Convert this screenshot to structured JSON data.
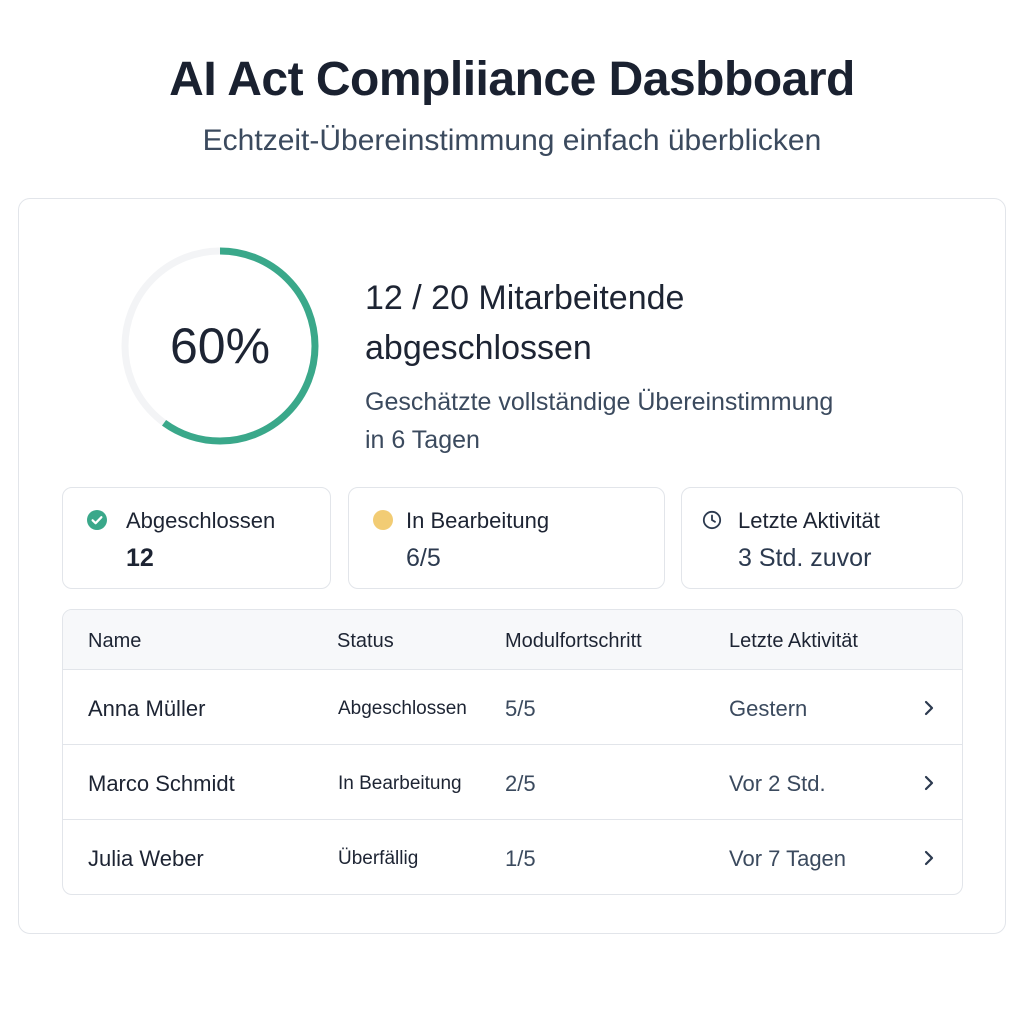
{
  "header": {
    "title": "AI Act Compliiance Dasbboard",
    "subtitle": "Echtzeit-Übereinstimmung einfach überblicken"
  },
  "progress": {
    "percent_label": "60%",
    "fraction": 0.6,
    "color": "#3aa88a",
    "track_color": "#f3f4f6",
    "headline_line1": "12 / 20 Mitarbeitende",
    "headline_line2": "abgeschlossen",
    "estimate_line1": "Geschätzte vollständige Übereinstimmung",
    "estimate_line2": "in 6 Tagen"
  },
  "stats": [
    {
      "icon": "check-circle-icon",
      "label": "Abgeschlossen",
      "value": "12",
      "color": "#3aa88a"
    },
    {
      "icon": "yellow-dot-icon",
      "label": "In Bearbeitung",
      "value": "6/5",
      "color": "#f2cc74"
    },
    {
      "icon": "clock-icon",
      "label": "Letzte Aktivität",
      "value": "3 Std. zuvor",
      "color": "#2c3a4f"
    }
  ],
  "table": {
    "headers": {
      "name": "Name",
      "status": "Status",
      "progress": "Modulfortschritt",
      "activity": "Letzte Aktivität"
    },
    "rows": [
      {
        "name": "Anna Müller",
        "status": "Abgeschlossen",
        "progress": "5/5",
        "activity": "Gestern"
      },
      {
        "name": "Marco Schmidt",
        "status": "In Bearbeitung",
        "progress": "2/5",
        "activity": "Vor 2 Std."
      },
      {
        "name": "Julia Weber",
        "status": "Überfällig",
        "progress": "1/5",
        "activity": "Vor 7 Tagen"
      }
    ]
  }
}
